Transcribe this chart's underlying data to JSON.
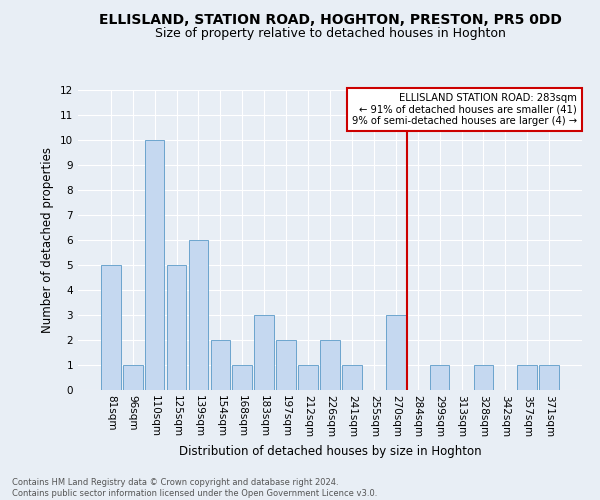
{
  "title": "ELLISLAND, STATION ROAD, HOGHTON, PRESTON, PR5 0DD",
  "subtitle": "Size of property relative to detached houses in Hoghton",
  "xlabel": "Distribution of detached houses by size in Hoghton",
  "ylabel": "Number of detached properties",
  "footer_line1": "Contains HM Land Registry data © Crown copyright and database right 2024.",
  "footer_line2": "Contains public sector information licensed under the Open Government Licence v3.0.",
  "categories": [
    "81sqm",
    "96sqm",
    "110sqm",
    "125sqm",
    "139sqm",
    "154sqm",
    "168sqm",
    "183sqm",
    "197sqm",
    "212sqm",
    "226sqm",
    "241sqm",
    "255sqm",
    "270sqm",
    "284sqm",
    "299sqm",
    "313sqm",
    "328sqm",
    "342sqm",
    "357sqm",
    "371sqm"
  ],
  "values": [
    5,
    1,
    10,
    5,
    6,
    2,
    1,
    3,
    2,
    1,
    2,
    1,
    0,
    3,
    0,
    1,
    0,
    1,
    0,
    1,
    1
  ],
  "bar_color": "#c5d8f0",
  "bar_edgecolor": "#5a9ac8",
  "highlight_index": 14,
  "highlight_color": "#cc0000",
  "annotation_title": "ELLISLAND STATION ROAD: 283sqm",
  "annotation_line1": "← 91% of detached houses are smaller (41)",
  "annotation_line2": "9% of semi-detached houses are larger (4) →",
  "ylim": [
    0,
    12
  ],
  "yticks": [
    0,
    1,
    2,
    3,
    4,
    5,
    6,
    7,
    8,
    9,
    10,
    11,
    12
  ],
  "background_color": "#e8eef5",
  "grid_color": "#ffffff",
  "title_fontsize": 10,
  "subtitle_fontsize": 9,
  "axis_label_fontsize": 8.5,
  "tick_fontsize": 7.5,
  "footer_fontsize": 6.0
}
